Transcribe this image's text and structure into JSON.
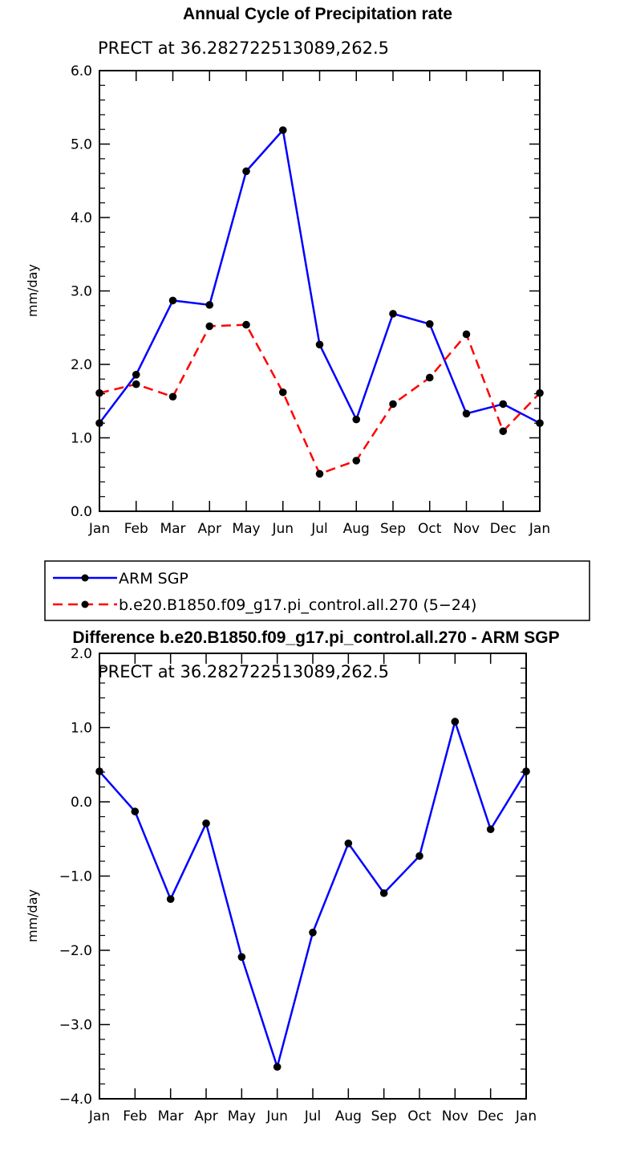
{
  "chart_data": [
    {
      "type": "line",
      "title": "Annual Cycle of Precipitation rate",
      "subtitle": "PRECT at 36.282722513089,262.5",
      "xlabel": "",
      "ylabel": "mm/day",
      "categories": [
        "Jan",
        "Feb",
        "Mar",
        "Apr",
        "May",
        "Jun",
        "Jul",
        "Aug",
        "Sep",
        "Oct",
        "Nov",
        "Dec",
        "Jan"
      ],
      "ylim": [
        0,
        6
      ],
      "yticks": [
        "0.0",
        "1.0",
        "2.0",
        "3.0",
        "4.0",
        "5.0",
        "6.0"
      ],
      "grid": false,
      "legend_position": "below",
      "series": [
        {
          "name": "ARM SGP",
          "color": "#0000ff",
          "style": "solid",
          "values": [
            1.2,
            1.86,
            2.87,
            2.81,
            4.63,
            5.19,
            2.27,
            1.25,
            2.69,
            2.55,
            1.33,
            1.46,
            1.2
          ]
        },
        {
          "name": "b.e20.B1850.f09_g17.pi_control.all.270 (5−24)",
          "color": "#ff0000",
          "style": "dashed",
          "values": [
            1.61,
            1.73,
            1.56,
            2.52,
            2.54,
            1.62,
            0.51,
            0.69,
            1.46,
            1.82,
            2.41,
            1.09,
            1.61
          ]
        }
      ]
    },
    {
      "type": "line",
      "title": "Difference b.e20.B1850.f09_g17.pi_control.all.270 - ARM SGP",
      "subtitle": "PRECT at 36.282722513089,262.5",
      "xlabel": "",
      "ylabel": "mm/day",
      "categories": [
        "Jan",
        "Feb",
        "Mar",
        "Apr",
        "May",
        "Jun",
        "Jul",
        "Aug",
        "Sep",
        "Oct",
        "Nov",
        "Dec",
        "Jan"
      ],
      "ylim": [
        -4,
        2
      ],
      "yticks": [
        "−4.0",
        "−3.0",
        "−2.0",
        "−1.0",
        "0.0",
        "1.0",
        "2.0"
      ],
      "grid": false,
      "series": [
        {
          "color": "#0000ff",
          "style": "solid",
          "values": [
            0.41,
            -0.13,
            -1.31,
            -0.29,
            -2.09,
            -3.57,
            -1.76,
            -0.56,
            -1.23,
            -0.73,
            1.08,
            -0.37,
            0.41
          ]
        }
      ]
    }
  ]
}
